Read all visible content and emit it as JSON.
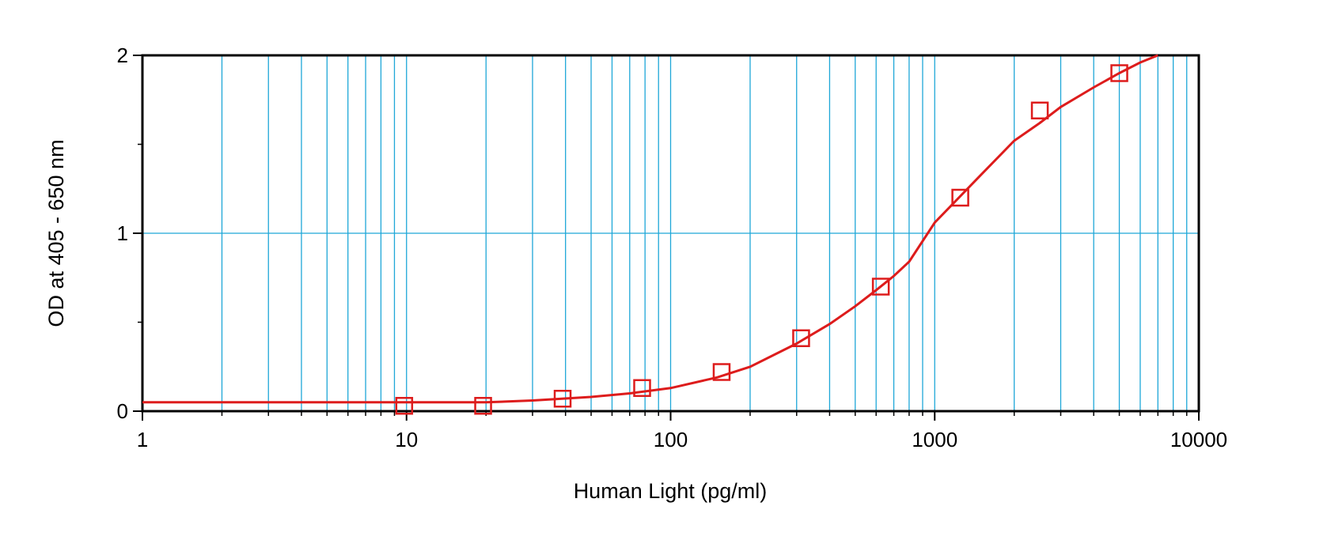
{
  "chart_data": {
    "type": "scatter",
    "title": "",
    "xlabel": "Human Light (pg/ml)",
    "ylabel": "OD at 405 - 650 nm",
    "x_scale": "log",
    "xlim": [
      1,
      10000
    ],
    "ylim": [
      0,
      2
    ],
    "x_ticks": [
      "1",
      "10",
      "100",
      "1000",
      "10000"
    ],
    "y_ticks": [
      "0",
      "1",
      "2"
    ],
    "grid": true,
    "grid_color": "#1ea7d8",
    "series_color": "#dd1c1c",
    "marker": "square-open",
    "series": [
      {
        "x": [
          9.8,
          19.5,
          39,
          78,
          156,
          312,
          625,
          1250,
          2500,
          5000
        ],
        "y": [
          0.03,
          0.03,
          0.07,
          0.13,
          0.22,
          0.41,
          0.7,
          1.2,
          1.69,
          1.9
        ]
      }
    ],
    "fit_curve": [
      [
        1,
        0.05
      ],
      [
        5,
        0.05
      ],
      [
        10,
        0.05
      ],
      [
        20,
        0.05
      ],
      [
        30,
        0.06
      ],
      [
        50,
        0.08
      ],
      [
        70,
        0.1
      ],
      [
        100,
        0.13
      ],
      [
        150,
        0.19
      ],
      [
        200,
        0.25
      ],
      [
        300,
        0.38
      ],
      [
        400,
        0.49
      ],
      [
        500,
        0.59
      ],
      [
        600,
        0.68
      ],
      [
        700,
        0.76
      ],
      [
        800,
        0.84
      ],
      [
        1000,
        1.06
      ],
      [
        1500,
        1.33
      ],
      [
        2000,
        1.52
      ],
      [
        2500,
        1.62
      ],
      [
        3000,
        1.71
      ],
      [
        4000,
        1.82
      ],
      [
        5000,
        1.9
      ],
      [
        6000,
        1.96
      ],
      [
        7000,
        2.0
      ]
    ]
  }
}
